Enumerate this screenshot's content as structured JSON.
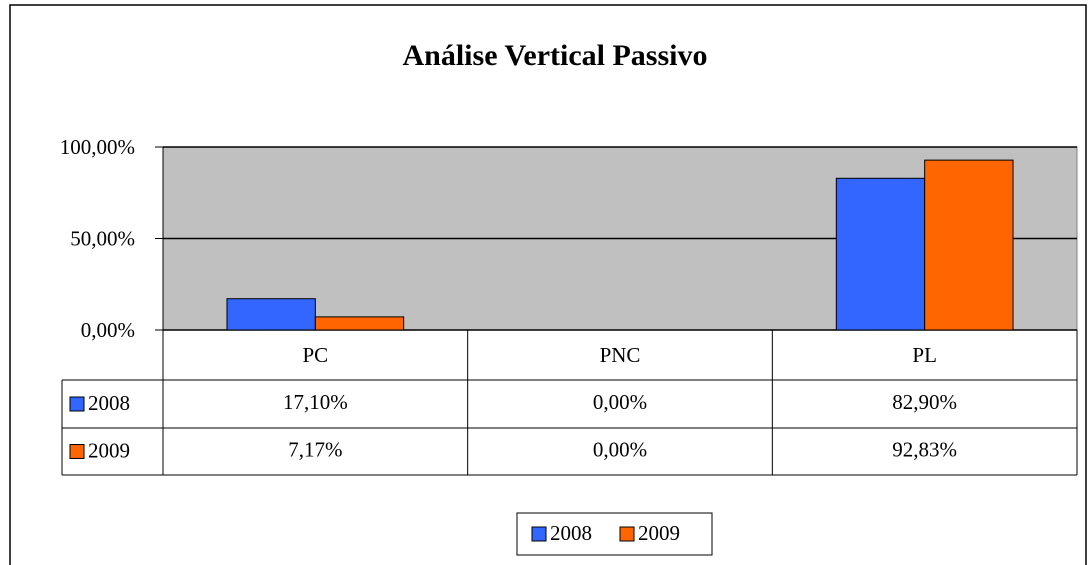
{
  "chart_data": {
    "type": "bar",
    "title": "Análise Vertical Passivo",
    "categories": [
      "PC",
      "PNC",
      "PL"
    ],
    "series": [
      {
        "name": "2008",
        "color": "#3366ff",
        "values": [
          17.1,
          0.0,
          82.9
        ],
        "value_labels": [
          "17,10%",
          "0,00%",
          "82,90%"
        ]
      },
      {
        "name": "2009",
        "color": "#ff6600",
        "values": [
          7.17,
          0.0,
          92.83
        ],
        "value_labels": [
          "7,17%",
          "0,00%",
          "92,83%"
        ]
      }
    ],
    "ylim": [
      0,
      100
    ],
    "yticks": [
      {
        "value": 0,
        "label": "0,00%"
      },
      {
        "value": 50,
        "label": "50,00%"
      },
      {
        "value": 100,
        "label": "100,00%"
      }
    ],
    "grid": true,
    "legend": "bottom",
    "plot_background": "#c0c0c0"
  }
}
